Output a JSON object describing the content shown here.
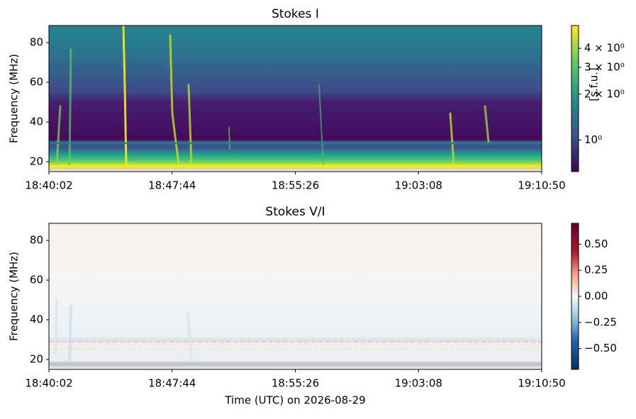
{
  "chart_data": [
    {
      "type": "heatmap",
      "title": "Stokes I",
      "ylabel": "Frequency (MHz)",
      "xlim": [
        "18:40:02",
        "19:10:50"
      ],
      "xticks": [
        "18:40:02",
        "18:47:44",
        "18:55:26",
        "19:03:08",
        "19:10:50"
      ],
      "ylim": [
        15,
        88.6
      ],
      "yticks": [
        20,
        40,
        60,
        80
      ],
      "colormap": "viridis",
      "color_scale": "log",
      "clim": [
        0.62,
        5.65
      ],
      "cticks": [
        {
          "value": 1,
          "label": "10⁰"
        },
        {
          "value": 2,
          "label": "2 × 10⁰"
        },
        {
          "value": 3,
          "label": "3 × 10⁰"
        },
        {
          "value": 4,
          "label": "4 × 10⁰"
        }
      ],
      "colorbar_label": "[s.f.u.]"
    },
    {
      "type": "heatmap",
      "title": "Stokes V/I",
      "ylabel": "Frequency (MHz)",
      "xlabel": "Time (UTC) on 2026-08-29",
      "xlim": [
        "18:40:02",
        "19:10:50"
      ],
      "xticks": [
        "18:40:02",
        "18:47:44",
        "18:55:26",
        "19:03:08",
        "19:10:50"
      ],
      "ylim": [
        15,
        88.6
      ],
      "yticks": [
        20,
        40,
        60,
        80
      ],
      "colormap": "RdBu_r",
      "color_scale": "linear",
      "clim": [
        -0.7,
        0.7
      ],
      "cticks": [
        {
          "value": -0.5,
          "label": "−0.50"
        },
        {
          "value": -0.25,
          "label": "−0.25"
        },
        {
          "value": 0,
          "label": "0.00"
        },
        {
          "value": 0.25,
          "label": "0.25"
        },
        {
          "value": 0.5,
          "label": "0.50"
        }
      ]
    }
  ]
}
